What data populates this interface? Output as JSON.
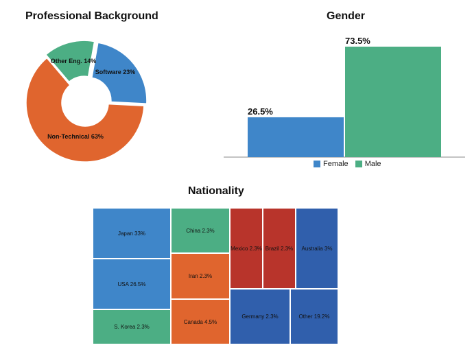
{
  "titles": {
    "professional_background": "Professional Background",
    "gender": "Gender",
    "nationality": "Nationality"
  },
  "colors": {
    "blue": "#3f86c9",
    "orange": "#e0652e",
    "green": "#4cae84",
    "red": "#b8342b",
    "navy": "#305fac"
  },
  "chart_data": [
    {
      "type": "pie",
      "variant": "donut",
      "title": "Professional Background",
      "slices": [
        {
          "label": "Software",
          "value": 23,
          "text": "Software 23%",
          "color": "#3f86c9"
        },
        {
          "label": "Non-Technical",
          "value": 63,
          "text": "Non-Technical 63%",
          "color": "#e0652e"
        },
        {
          "label": "Other Eng.",
          "value": 14,
          "text": "Other Eng. 14%",
          "color": "#4cae84"
        }
      ]
    },
    {
      "type": "bar",
      "title": "Gender",
      "categories": [
        "Female",
        "Male"
      ],
      "values": [
        26.5,
        73.5
      ],
      "value_labels": [
        "26.5%",
        "73.5%"
      ],
      "colors": [
        "#3f86c9",
        "#4cae84"
      ],
      "ylim": [
        0,
        73.5
      ],
      "legend": {
        "position": "bottom",
        "entries": [
          "Female",
          "Male"
        ]
      }
    },
    {
      "type": "treemap",
      "title": "Nationality",
      "cells": [
        {
          "label": "Japan",
          "value": 33,
          "text": "Japan 33%",
          "color": "#3f86c9"
        },
        {
          "label": "USA",
          "value": 26.5,
          "text": "USA 26.5%",
          "color": "#3f86c9"
        },
        {
          "label": "S. Korea",
          "value": 2.3,
          "text": "S. Korea 2.3%",
          "color": "#4cae84"
        },
        {
          "label": "China",
          "value": 2.3,
          "text": "China 2.3%",
          "color": "#4cae84"
        },
        {
          "label": "Iran",
          "value": 2.3,
          "text": "Iran 2.3%",
          "color": "#e0652e"
        },
        {
          "label": "Canada",
          "value": 4.5,
          "text": "Canada 4.5%",
          "color": "#e0652e"
        },
        {
          "label": "Mexico",
          "value": 2.3,
          "text": "Mexico 2.3%",
          "color": "#b8342b"
        },
        {
          "label": "Brazil",
          "value": 2.3,
          "text": "Brazil 2.3%",
          "color": "#b8342b"
        },
        {
          "label": "Australia",
          "value": 3,
          "text": "Australia 3%",
          "color": "#305fac"
        },
        {
          "label": "Germany",
          "value": 2.3,
          "text": "Germany 2.3%",
          "color": "#305fac"
        },
        {
          "label": "Other",
          "value": 19.2,
          "text": "Other 19.2%",
          "color": "#305fac"
        }
      ]
    }
  ]
}
